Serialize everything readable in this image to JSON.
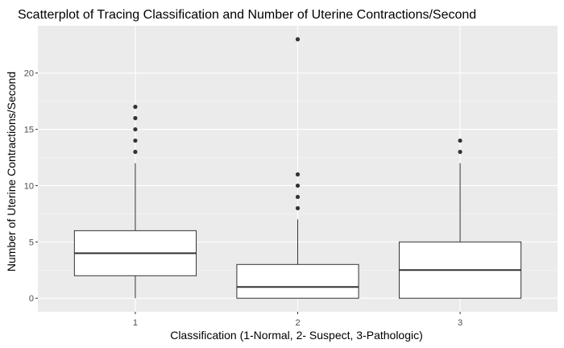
{
  "chart_data": {
    "type": "box",
    "title": "Scatterplot of Tracing Classification and Number of Uterine Contractions/Second",
    "xlabel": "Classification (1-Normal, 2- Suspect, 3-Pathologic)",
    "ylabel": "Number of Uterine Contractions/Second",
    "categories": [
      "1",
      "2",
      "3"
    ],
    "ylim": [
      -1.2,
      24.2
    ],
    "yticks": [
      0,
      5,
      10,
      15,
      20
    ],
    "grid": true,
    "legend": "none",
    "boxes": [
      {
        "category": "1",
        "min": 0,
        "q1": 2,
        "median": 4,
        "q3": 6,
        "max": 12,
        "outliers": [
          13,
          14,
          15,
          16,
          17
        ]
      },
      {
        "category": "2",
        "min": 0,
        "q1": 0,
        "median": 1,
        "q3": 3,
        "max": 7,
        "outliers": [
          8,
          9,
          10,
          11,
          23
        ]
      },
      {
        "category": "3",
        "min": 0,
        "q1": 0,
        "median": 2.5,
        "q3": 5,
        "max": 12,
        "outliers": [
          13,
          14
        ]
      }
    ],
    "colors": {
      "panel": "#ebebeb",
      "grid_major": "#ffffff",
      "box_fill": "#ffffff",
      "box_stroke": "#333333",
      "outlier": "#333333"
    }
  }
}
